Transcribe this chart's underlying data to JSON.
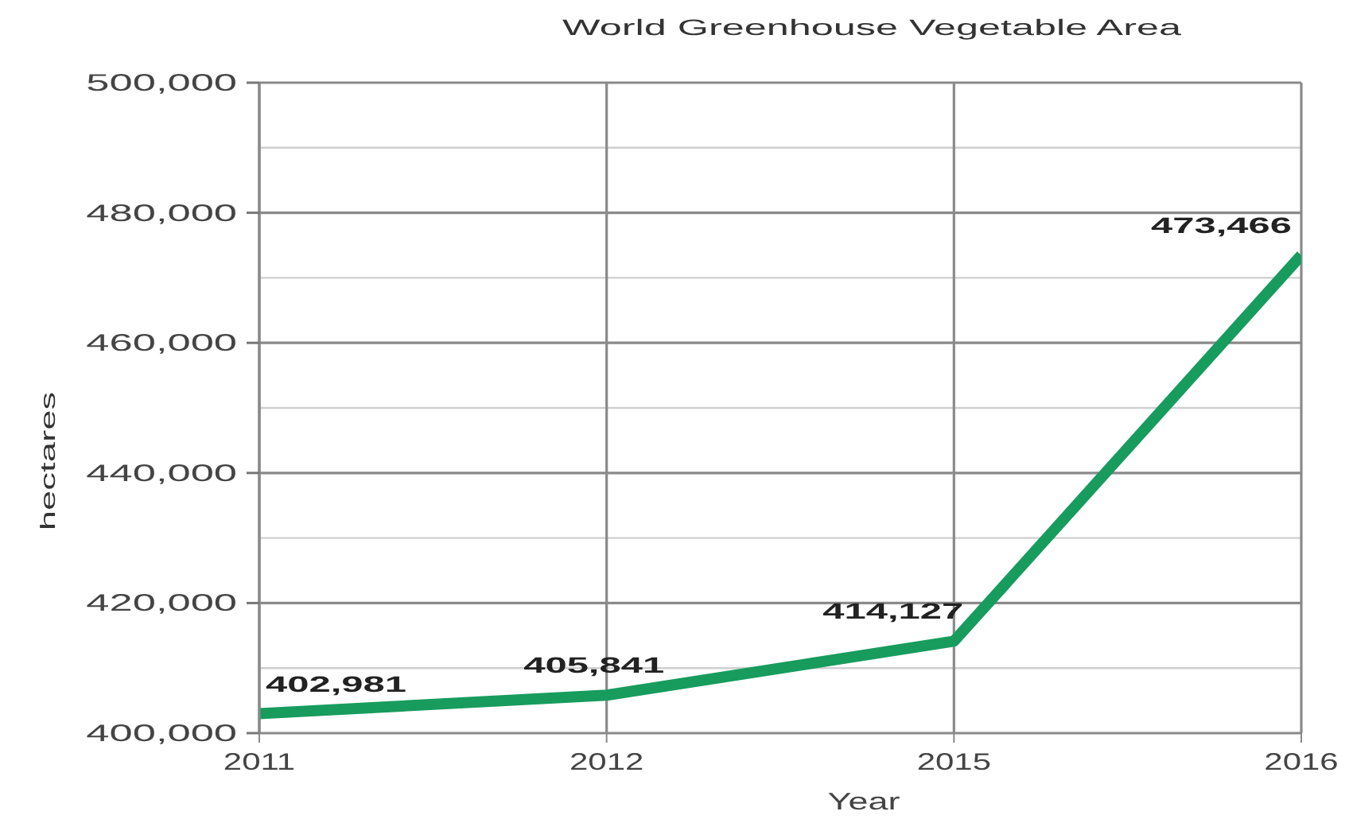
{
  "chart_data": {
    "type": "line",
    "title": "World Greenhouse Vegetable Area",
    "xlabel": "Year",
    "ylabel": "hectares",
    "categories": [
      "2011",
      "2012",
      "2015",
      "2016"
    ],
    "series": [
      {
        "color": "#179c5e",
        "values": [
          402981,
          405841,
          414127,
          473466
        ],
        "value_labels": [
          "402,981",
          "405,841",
          "414,127",
          "473,466"
        ]
      }
    ],
    "ylim": [
      400000,
      500000
    ],
    "yticks": [
      {
        "value": 400000,
        "label": "400,000"
      },
      {
        "value": 410000,
        "label": null
      },
      {
        "value": 420000,
        "label": "420,000"
      },
      {
        "value": 430000,
        "label": null
      },
      {
        "value": 440000,
        "label": "440,000"
      },
      {
        "value": 450000,
        "label": null
      },
      {
        "value": 460000,
        "label": "460,000"
      },
      {
        "value": 470000,
        "label": null
      },
      {
        "value": 480000,
        "label": "480,000"
      },
      {
        "value": 490000,
        "label": null
      },
      {
        "value": 500000,
        "label": "500,000"
      }
    ],
    "grid": true,
    "marker": "none"
  }
}
